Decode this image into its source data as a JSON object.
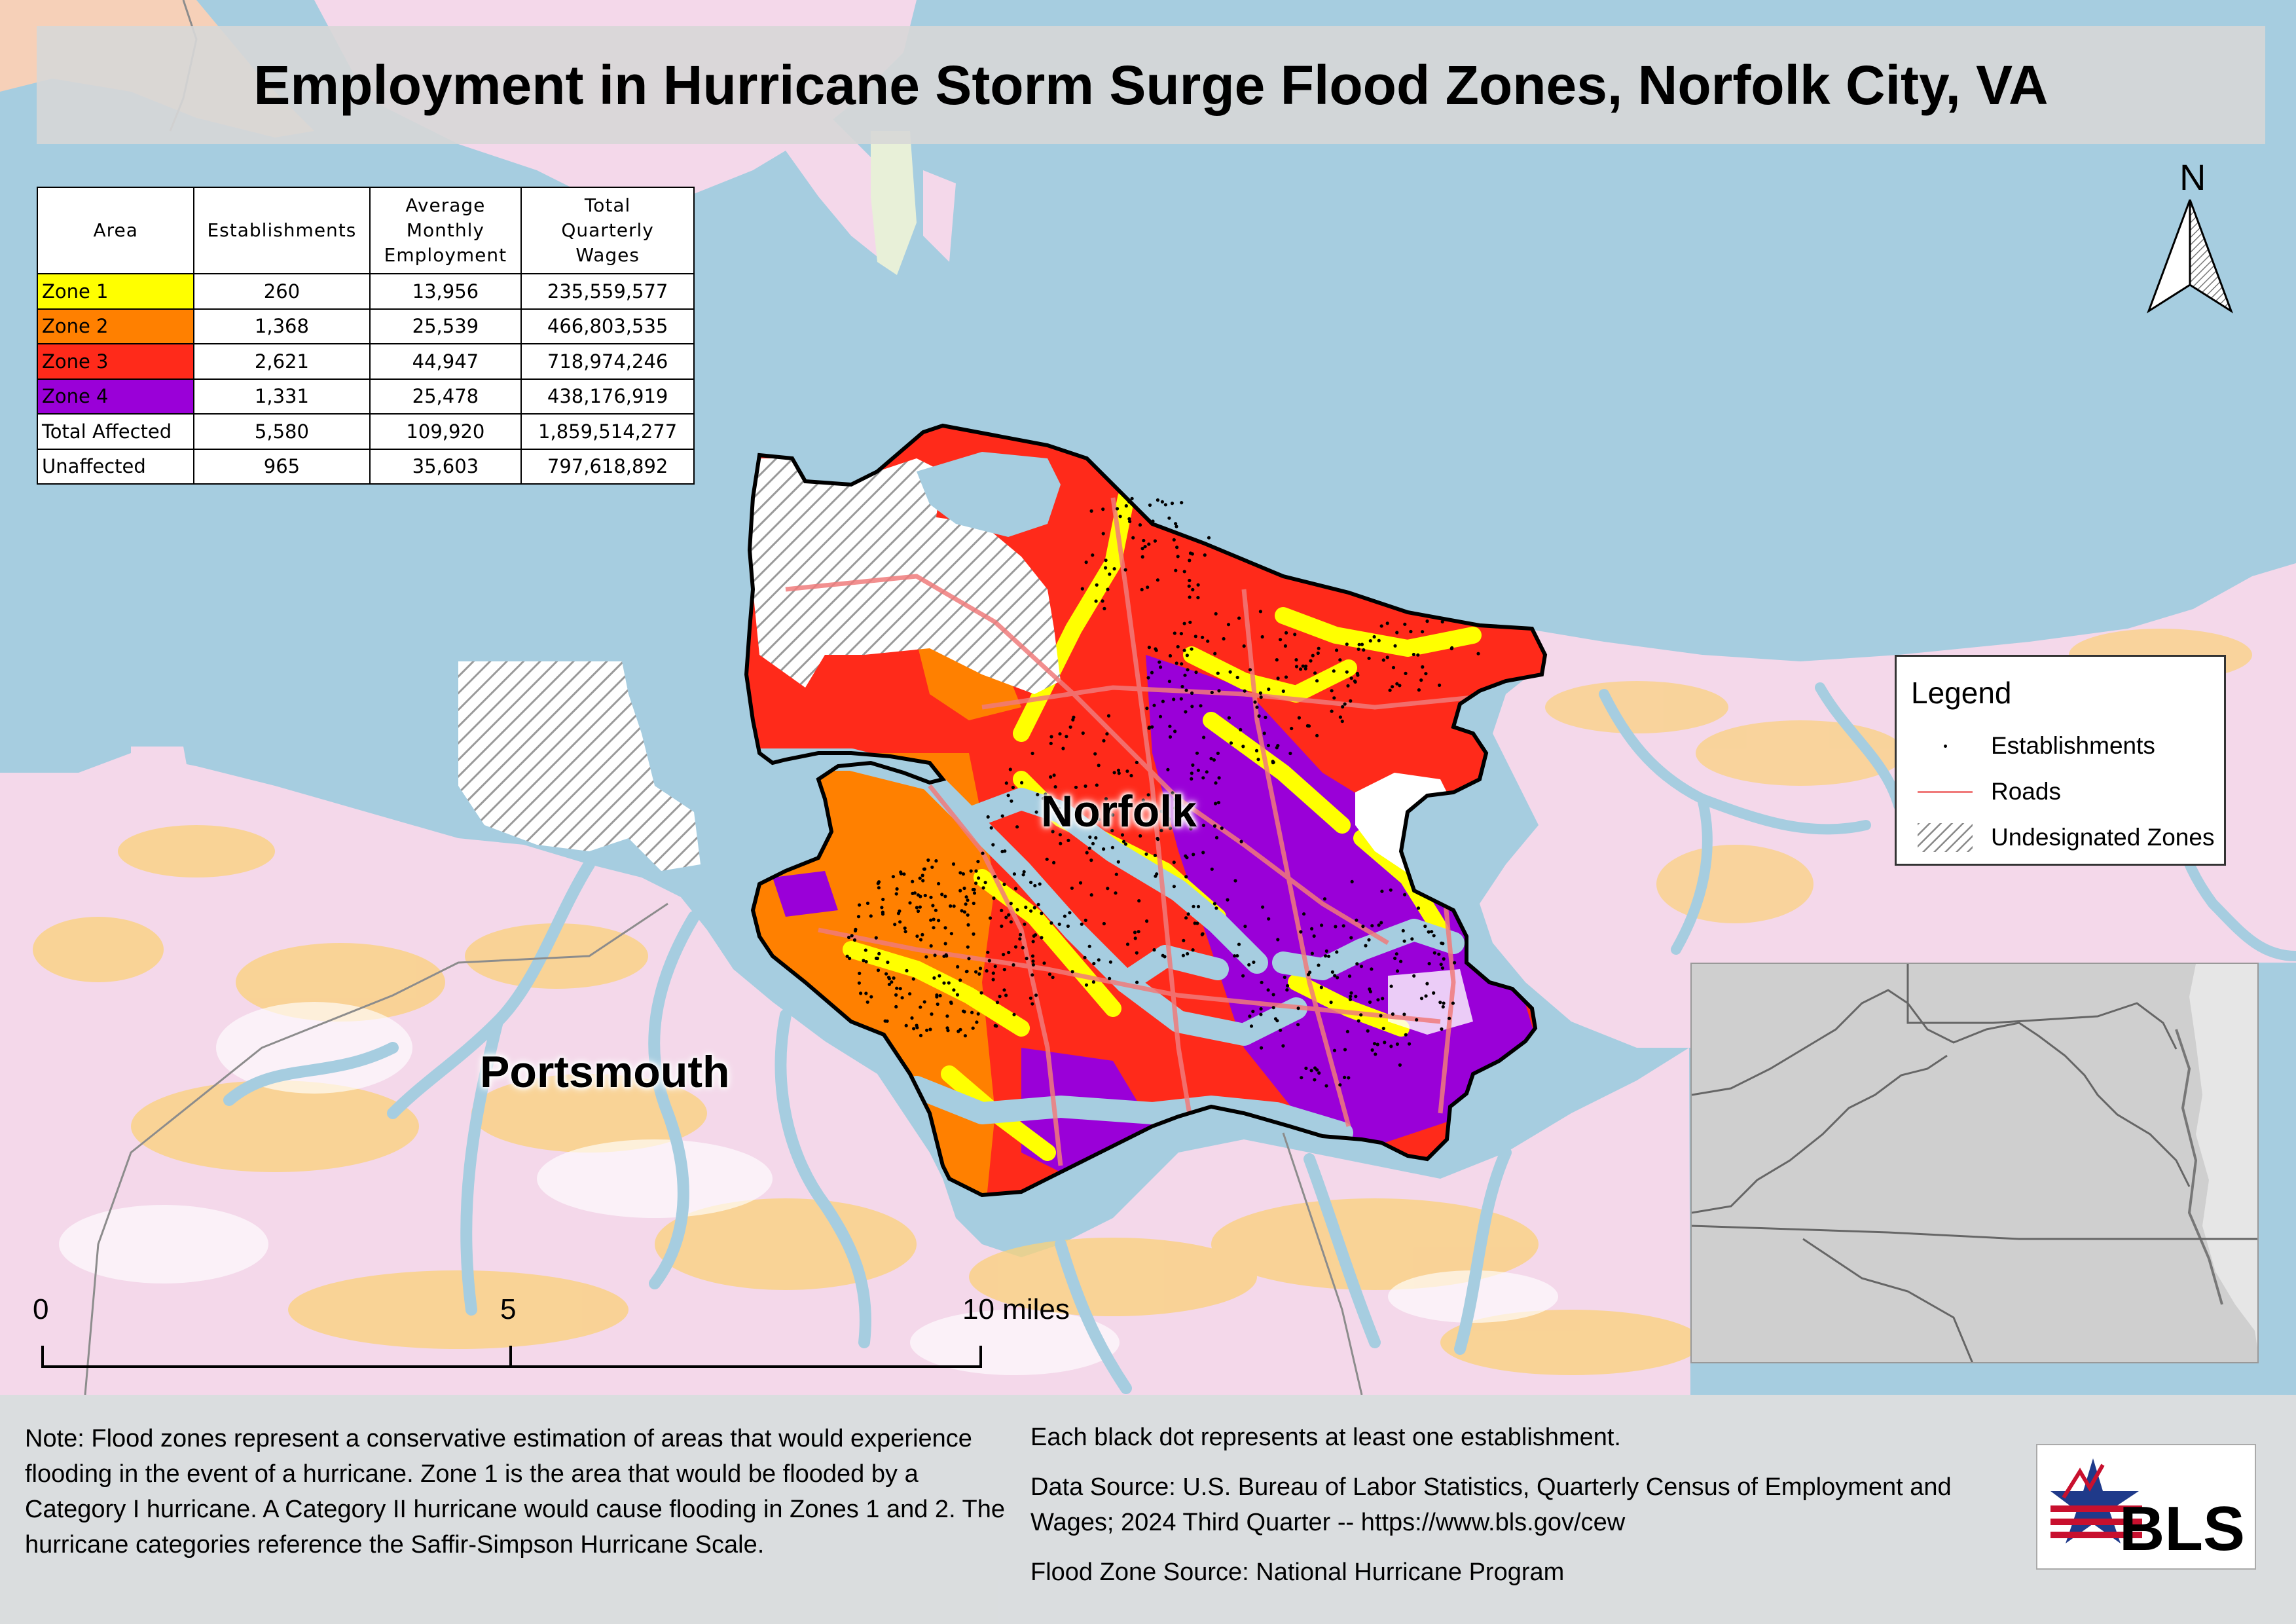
{
  "title": "Employment in Hurricane Storm Surge Flood Zones, Norfolk City, VA",
  "table": {
    "headers": [
      "Area",
      "Establishments",
      "Average Monthly Employment",
      "Total Quarterly Wages"
    ],
    "rows": [
      {
        "area": "Zone 1",
        "color": "#ffff00",
        "establishments": "260",
        "employment": "13,956",
        "wages": "235,559,577"
      },
      {
        "area": "Zone 2",
        "color": "#ff8000",
        "establishments": "1,368",
        "employment": "25,539",
        "wages": "466,803,535"
      },
      {
        "area": "Zone 3",
        "color": "#ff2a1a",
        "establishments": "2,621",
        "employment": "44,947",
        "wages": "718,974,246"
      },
      {
        "area": "Zone 4",
        "color": "#9a00d8",
        "establishments": "1,331",
        "employment": "25,478",
        "wages": "438,176,919"
      },
      {
        "area": "Total Affected",
        "color": "#ffffff",
        "establishments": "5,580",
        "employment": "109,920",
        "wages": "1,859,514,277"
      },
      {
        "area": "Unaffected",
        "color": "#ffffff",
        "establishments": "965",
        "employment": "35,603",
        "wages": "797,618,892"
      }
    ]
  },
  "legend": {
    "title": "Legend",
    "items": [
      {
        "label": "Establishments",
        "symbol": "dot"
      },
      {
        "label": "Roads",
        "symbol": "line",
        "color": "#f07b7b"
      },
      {
        "label": "Undesignated Zones",
        "symbol": "hatch"
      }
    ]
  },
  "labels": {
    "norfolk": "Norfolk",
    "portsmouth": "Portsmouth",
    "north": "N"
  },
  "scale": {
    "ticks": [
      "0",
      "5",
      "10 miles"
    ]
  },
  "note": "Note: Flood zones represent a conservative estimation of areas that would experience flooding in the event of a hurricane. Zone 1 is the area that would be flooded by a Category I hurricane. A Category II hurricane would cause flooding in Zones 1 and 2. The hurricane categories reference the Saffir-Simpson Hurricane Scale.",
  "dot_note": "Each black dot represents at least one establishment.",
  "data_source": "Data Source: U.S. Bureau of Labor Statistics, Quarterly Census of Employment and Wages; 2024 Third Quarter -- https://www.bls.gov/cew",
  "flood_source": "Flood Zone Source: National Hurricane Program",
  "logo_text": "BLS",
  "colors": {
    "water": "#a6cde0",
    "land": "#f4d8ea",
    "zone1": "#ffff00",
    "zone2": "#ff8000",
    "zone3": "#ff2a1a",
    "zone4": "#9a00d8",
    "road": "#f07b7b"
  }
}
